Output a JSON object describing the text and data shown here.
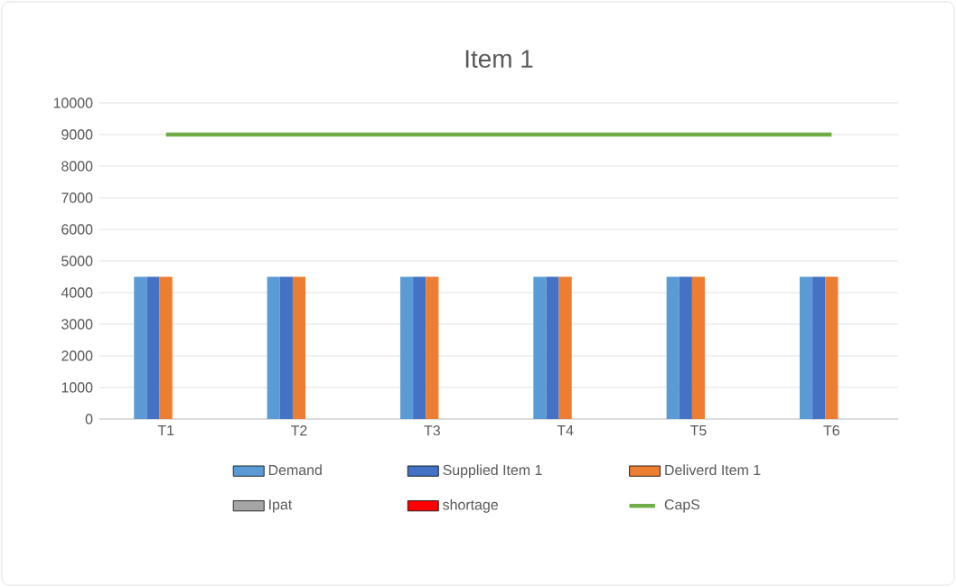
{
  "chart_data": {
    "type": "bar",
    "title": "Item 1",
    "categories": [
      "T1",
      "T2",
      "T3",
      "T4",
      "T5",
      "T6"
    ],
    "series": [
      {
        "name": "Demand",
        "color": "#5b9bd5",
        "values": [
          4500,
          4500,
          4500,
          4500,
          4500,
          4500
        ]
      },
      {
        "name": "Supplied Item 1",
        "color": "#4472c4",
        "values": [
          4500,
          4500,
          4500,
          4500,
          4500,
          4500
        ]
      },
      {
        "name": "Deliverd Item 1",
        "color": "#ed7d31",
        "values": [
          4500,
          4500,
          4500,
          4500,
          4500,
          4500
        ]
      },
      {
        "name": "Ipat",
        "color": "#a5a5a5",
        "values": [
          0,
          0,
          0,
          0,
          0,
          0
        ]
      },
      {
        "name": "shortage",
        "color": "#ff0000",
        "values": [
          0,
          0,
          0,
          0,
          0,
          0
        ]
      },
      {
        "name": "CapS",
        "type": "line",
        "color": "#70ad47",
        "values": [
          9000,
          9000,
          9000,
          9000,
          9000,
          9000
        ]
      }
    ],
    "ylim": [
      0,
      10000
    ],
    "yticks": [
      0,
      1000,
      2000,
      3000,
      4000,
      5000,
      6000,
      7000,
      8000,
      9000,
      10000
    ],
    "grid": "y",
    "legend": "bottom"
  }
}
